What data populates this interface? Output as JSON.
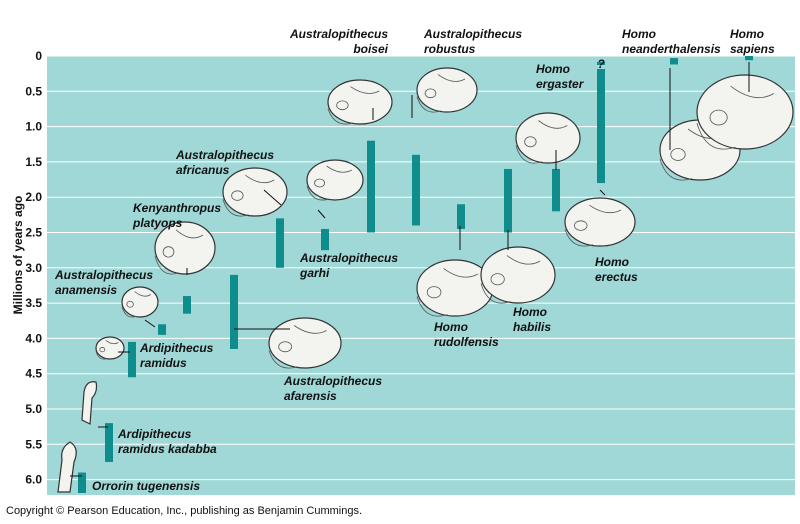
{
  "chart_data": {
    "type": "range",
    "title": "",
    "ylabel": "Millions of years ago",
    "ylim": [
      0,
      6.1
    ],
    "y_ticks": [
      "0",
      "0.5",
      "1.0",
      "1.5",
      "2.0",
      "2.5",
      "3.0",
      "3.5",
      "4.0",
      "4.5",
      "5.0",
      "5.5",
      "6.0"
    ],
    "colors": {
      "bar": "#0f8c8c",
      "background": "#9fd8d6",
      "grid": "#ffffff"
    },
    "species": [
      {
        "id": "orrorin",
        "name": "Orrorin tugenensis",
        "start": 6.2,
        "end": 5.9
      },
      {
        "id": "ard-kadabba",
        "name": "Ardipithecus ramidus kadabba",
        "start": 5.75,
        "end": 5.2
      },
      {
        "id": "ard-ramidus",
        "name": "Ardipithecus ramidus",
        "start": 4.55,
        "end": 4.05
      },
      {
        "id": "anamensis",
        "name": "Australopithecus anamensis",
        "start": 3.95,
        "end": 3.8
      },
      {
        "id": "kenyanthropus",
        "name": "Kenyanthropus platyops",
        "start": 3.65,
        "end": 3.4
      },
      {
        "id": "afarensis",
        "name": "Australopithecus afarensis",
        "start": 4.15,
        "end": 3.1
      },
      {
        "id": "africanus",
        "name": "Australopithecus africanus",
        "start": 3.0,
        "end": 2.3
      },
      {
        "id": "garhi",
        "name": "Australopithecus garhi",
        "start": 2.75,
        "end": 2.45
      },
      {
        "id": "boisei",
        "name": "Australopithecus boisei",
        "start": 2.5,
        "end": 1.2
      },
      {
        "id": "robustus",
        "name": "Australopithecus robustus",
        "start": 2.4,
        "end": 1.4
      },
      {
        "id": "rudolfensis",
        "name": "Homo rudolfensis",
        "start": 2.45,
        "end": 2.1
      },
      {
        "id": "habilis",
        "name": "Homo habilis",
        "start": 2.5,
        "end": 1.6
      },
      {
        "id": "ergaster",
        "name": "Homo ergaster",
        "start": 2.2,
        "end": 1.6
      },
      {
        "id": "erectus",
        "name": "Homo erectus",
        "start": 1.8,
        "end": 0.2
      },
      {
        "id": "neanderthalensis",
        "name": "Homo neanderthalensis",
        "start": 0.12,
        "end": 0.03
      },
      {
        "id": "sapiens",
        "name": "Homo sapiens",
        "start": 0.06,
        "end": 0.0
      }
    ],
    "annotations": [
      "?"
    ]
  },
  "labels": {
    "orrorin": [
      "Orrorin tugenensis"
    ],
    "ard-kadabba": [
      "Ardipithecus",
      "ramidus kadabba"
    ],
    "ard-ramidus": [
      "Ardipithecus",
      "ramidus"
    ],
    "anamensis": [
      "Australopithecus",
      "anamensis"
    ],
    "kenyanthropus": [
      "Kenyanthropus",
      "platyops"
    ],
    "afarensis": [
      "Australopithecus",
      "afarensis"
    ],
    "africanus": [
      "Australopithecus",
      "africanus"
    ],
    "garhi": [
      "Australopithecus",
      "garhi"
    ],
    "boisei": [
      "Australopithecus",
      "boisei"
    ],
    "robustus": [
      "Australopithecus",
      "robustus"
    ],
    "rudolfensis": [
      "Homo",
      "rudolfensis"
    ],
    "habilis": [
      "Homo",
      "habilis"
    ],
    "ergaster": [
      "Homo",
      "ergaster"
    ],
    "erectus": [
      "Homo",
      "erectus"
    ],
    "neanderthalensis": [
      "Homo",
      "neanderthalensis"
    ],
    "sapiens": [
      "Homo",
      "sapiens"
    ]
  },
  "uncertain_mark": "?",
  "copyright": "Copyright © Pearson Education, Inc., publishing as Benjamin Cummings."
}
